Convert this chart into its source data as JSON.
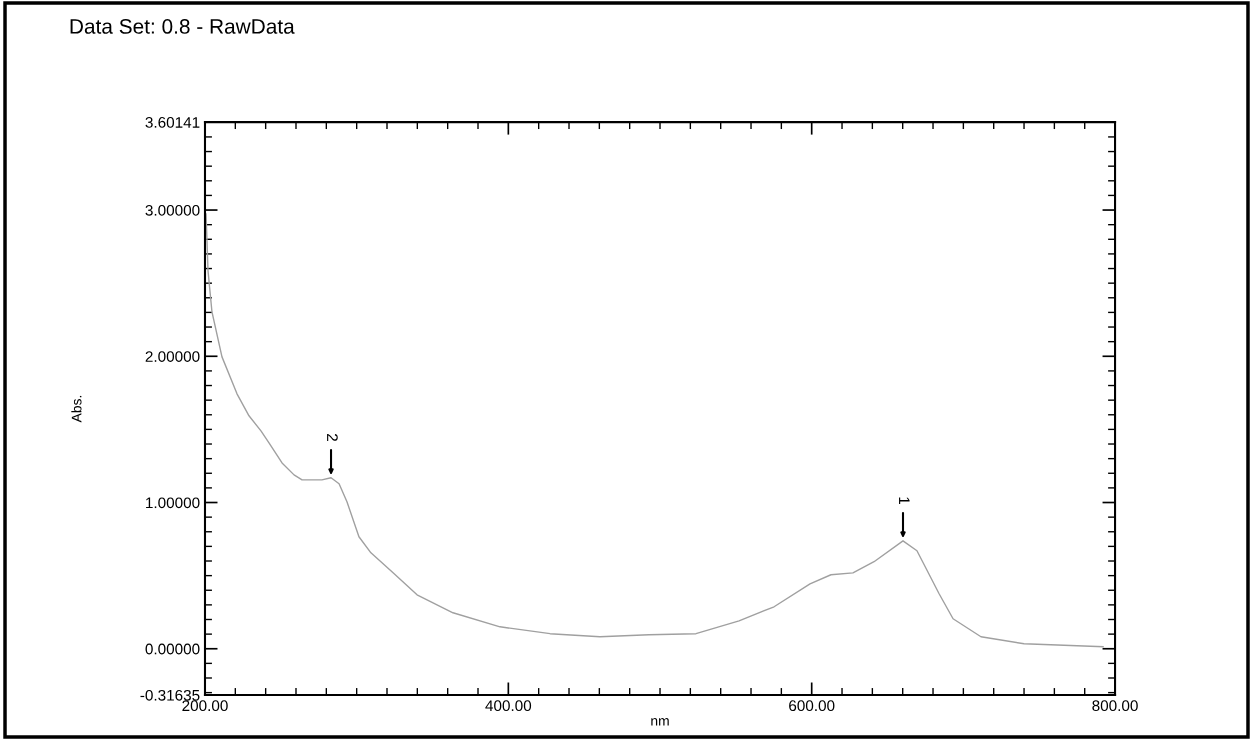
{
  "chart_data": {
    "type": "line",
    "title": "Data Set: 0.8 - RawData",
    "xlabel": "nm",
    "ylabel": "Abs.",
    "x": [
      200.7,
      202.0,
      204.6,
      211.2,
      221.1,
      229.0,
      236.9,
      242.2,
      250.8,
      258.7,
      264.0,
      277.1,
      283.1,
      288.4,
      293.6,
      301.5,
      309.4,
      324.0,
      339.8,
      363.5,
      394.5,
      427.5,
      460.4,
      492.7,
      523.7,
      552.1,
      575.2,
      598.9,
      612.7,
      627.2,
      641.1,
      660.2,
      669.4,
      684.0,
      693.2,
      711.6,
      740.0,
      792.1
    ],
    "series": [
      {
        "color": "#a0a0a0",
        "values": [
          2.973,
          2.584,
          2.303,
          1.996,
          1.743,
          1.593,
          1.49,
          1.408,
          1.271,
          1.189,
          1.155,
          1.155,
          1.169,
          1.128,
          1.005,
          0.766,
          0.656,
          0.519,
          0.369,
          0.246,
          0.15,
          0.103,
          0.082,
          0.096,
          0.103,
          0.191,
          0.287,
          0.444,
          0.506,
          0.519,
          0.595,
          0.738,
          0.67,
          0.376,
          0.205,
          0.082,
          0.034,
          0.014
        ]
      }
    ],
    "annotations": [
      {
        "text": "2",
        "x": 283.1,
        "y": 1.169
      },
      {
        "text": "1",
        "x": 660.2,
        "y": 0.738
      }
    ],
    "xlim": [
      200,
      800
    ],
    "xticks": [
      {
        "value": 200,
        "label": "200.00"
      },
      {
        "value": 400,
        "label": "400.00"
      },
      {
        "value": 600,
        "label": "600.00"
      },
      {
        "value": 800,
        "label": "800.00"
      }
    ],
    "ylim": [
      -0.31635,
      3.60141
    ],
    "yticks": [
      {
        "value": -0.31635,
        "label": "-0.31635"
      },
      {
        "value": 0,
        "label": "0.00000"
      },
      {
        "value": 1,
        "label": "1.00000"
      },
      {
        "value": 2,
        "label": "2.00000"
      },
      {
        "value": 3,
        "label": "3.00000"
      },
      {
        "value": 3.60141,
        "label": "3.60141"
      }
    ],
    "grid": false,
    "legend": false,
    "marker": "none",
    "line_style": "solid"
  }
}
